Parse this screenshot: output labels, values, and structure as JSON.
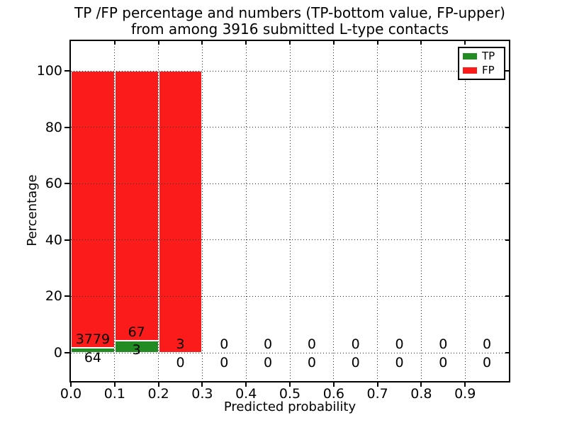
{
  "chart_data": {
    "type": "bar",
    "stacked": true,
    "title_line1": "TP /FP percentage and numbers (TP-bottom value, FP-upper)",
    "title_line2": "from among 3916 submitted L-type contacts",
    "xlabel": "Predicted probability",
    "ylabel": "Percentage",
    "xlim": [
      0,
      1.0
    ],
    "ylim": [
      -10,
      110.5
    ],
    "xticks": [
      "0.0",
      "0.1",
      "0.2",
      "0.3",
      "0.4",
      "0.5",
      "0.6",
      "0.7",
      "0.8",
      "0.9"
    ],
    "yticks": [
      0,
      20,
      40,
      60,
      80,
      100
    ],
    "grid": true,
    "grid_style": "dotted",
    "total_contacts": 3916,
    "bin_width": 0.1,
    "tp_color": "#228b22",
    "fp_color": "#fb1b1b",
    "legend": {
      "position": "upper-right",
      "items": [
        {
          "label": "TP",
          "color": "#228b22"
        },
        {
          "label": "FP",
          "color": "#fb1b1b"
        }
      ]
    },
    "bins": [
      {
        "range": [
          0.0,
          0.1
        ],
        "tp": 64,
        "fp": 3779,
        "tp_pct": 1.67,
        "fp_pct": 98.33
      },
      {
        "range": [
          0.1,
          0.2
        ],
        "tp": 3,
        "fp": 67,
        "tp_pct": 4.29,
        "fp_pct": 95.71
      },
      {
        "range": [
          0.2,
          0.3
        ],
        "tp": 0,
        "fp": 3,
        "tp_pct": 0,
        "fp_pct": 100
      },
      {
        "range": [
          0.3,
          0.4
        ],
        "tp": 0,
        "fp": 0,
        "tp_pct": 0,
        "fp_pct": 0
      },
      {
        "range": [
          0.4,
          0.5
        ],
        "tp": 0,
        "fp": 0,
        "tp_pct": 0,
        "fp_pct": 0
      },
      {
        "range": [
          0.5,
          0.6
        ],
        "tp": 0,
        "fp": 0,
        "tp_pct": 0,
        "fp_pct": 0
      },
      {
        "range": [
          0.6,
          0.7
        ],
        "tp": 0,
        "fp": 0,
        "tp_pct": 0,
        "fp_pct": 0
      },
      {
        "range": [
          0.7,
          0.8
        ],
        "tp": 0,
        "fp": 0,
        "tp_pct": 0,
        "fp_pct": 0
      },
      {
        "range": [
          0.8,
          0.9
        ],
        "tp": 0,
        "fp": 0,
        "tp_pct": 0,
        "fp_pct": 0
      },
      {
        "range": [
          0.9,
          1.0
        ],
        "tp": 0,
        "fp": 0,
        "tp_pct": 0,
        "fp_pct": 0
      }
    ]
  }
}
